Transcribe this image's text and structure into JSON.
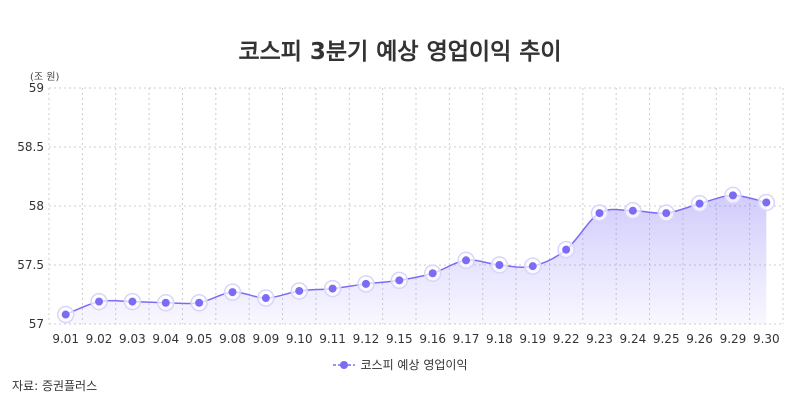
{
  "chart_data": {
    "type": "area",
    "title": "코스피 3분기 예상 영업이익 추이",
    "unit_label": "(조 원)",
    "source": "자료: 증권플러스",
    "categories": [
      "9.01",
      "9.02",
      "9.03",
      "9.04",
      "9.05",
      "9.08",
      "9.09",
      "9.10",
      "9.11",
      "9.12",
      "9.15",
      "9.16",
      "9.17",
      "9.18",
      "9.19",
      "9.22",
      "9.23",
      "9.24",
      "9.25",
      "9.26",
      "9.29",
      "9.30"
    ],
    "series": [
      {
        "name": "코스피 예상 영업이익",
        "color": "#7b6cf6",
        "values": [
          57.08,
          57.19,
          57.19,
          57.18,
          57.18,
          57.27,
          57.22,
          57.28,
          57.3,
          57.34,
          57.37,
          57.43,
          57.54,
          57.5,
          57.49,
          57.63,
          57.94,
          57.96,
          57.94,
          58.02,
          58.09,
          58.03
        ]
      }
    ],
    "ylim": [
      57,
      59
    ],
    "yticks": [
      "57",
      "57.5",
      "58",
      "58.5",
      "59"
    ],
    "legend_position": "bottom",
    "grid": true
  }
}
